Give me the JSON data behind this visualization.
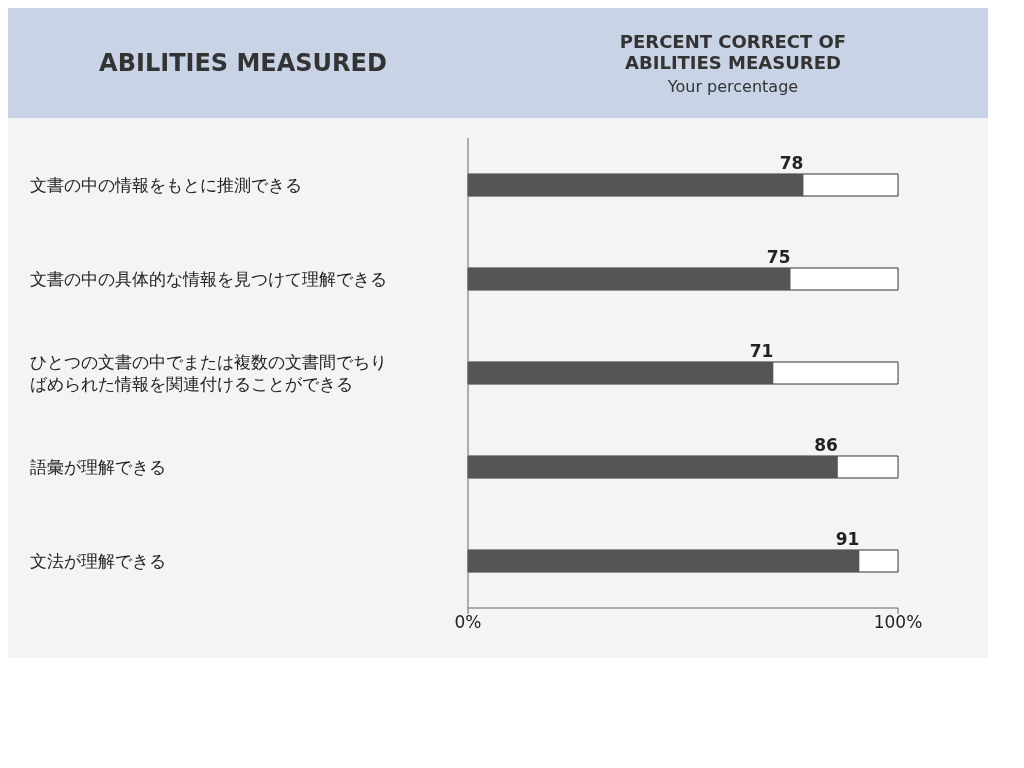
{
  "chart_data": {
    "type": "bar",
    "orientation": "horizontal",
    "title": "PERCENT CORRECT OF ABILITIES MEASURED",
    "ylabel": "ABILITIES MEASURED",
    "annotations": [
      "Your percentage"
    ],
    "categories": [
      "文書の中の情報をもとに推測できる",
      "文書の中の具体的な情報を見つけて理解できる",
      "ひとつの文書の中でまたは複数の文書間でちりばめられた情報を関連付けることができる",
      "語彙が理解できる",
      "文法が理解できる"
    ],
    "values": [
      78,
      75,
      71,
      86,
      91
    ],
    "color": "#555555",
    "data_labels": true,
    "xlim": [
      0,
      100
    ],
    "xticks": [
      {
        "value": 0,
        "label": "0%"
      },
      {
        "value": 100,
        "label": "100%"
      }
    ]
  }
}
